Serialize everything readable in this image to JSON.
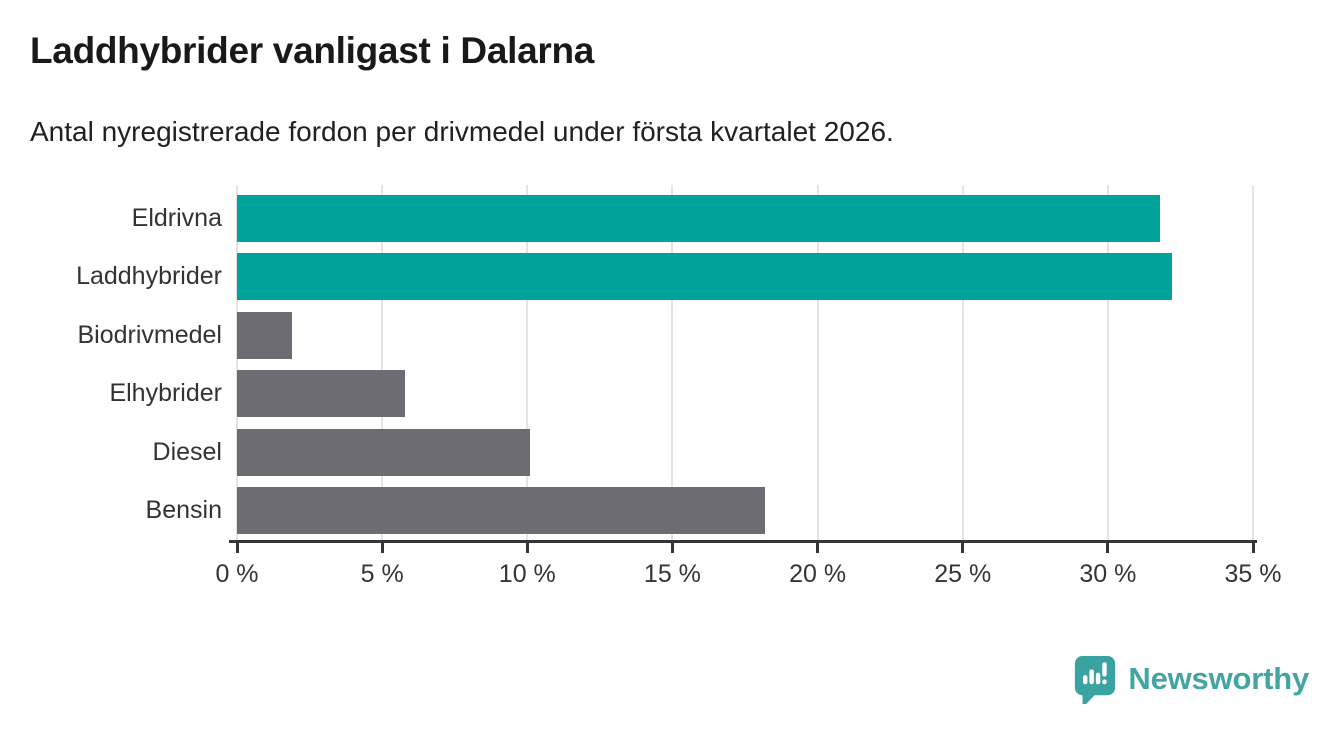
{
  "header": {
    "title": "Laddhybrider vanligast i Dalarna",
    "subtitle": "Antal nyregistrerade fordon per drivmedel under första kvartalet 2026."
  },
  "chart_data": {
    "type": "bar",
    "orientation": "horizontal",
    "title": "Laddhybrider vanligast i Dalarna",
    "subtitle": "Antal nyregistrerade fordon per drivmedel under första kvartalet 2026.",
    "categories": [
      "Eldrivna",
      "Laddhybrider",
      "Biodrivmedel",
      "Elhybrider",
      "Diesel",
      "Bensin"
    ],
    "values": [
      31.8,
      32.2,
      1.9,
      5.8,
      10.1,
      18.2
    ],
    "unit": "%",
    "xlabel": "",
    "ylabel": "",
    "xlim": [
      0,
      35
    ],
    "x_ticks": [
      0,
      5,
      10,
      15,
      20,
      25,
      30,
      35
    ],
    "x_tick_labels": [
      "0 %",
      "5 %",
      "10 %",
      "15 %",
      "20 %",
      "25 %",
      "30 %",
      "35 %"
    ],
    "grid": true,
    "legend": "none",
    "bar_colors": [
      "#00a299",
      "#00a299",
      "#6d6c73",
      "#6d6c73",
      "#6d6c73",
      "#6d6c73"
    ],
    "colors": {
      "highlight": "#00a299",
      "default": "#6d6c73",
      "gridline": "#e4e4e4",
      "axis": "#363339"
    }
  },
  "footer": {
    "logo_text": "Newsworthy",
    "logo_text_color": "#43a5a2",
    "logo_icon_color": "#38a3a0",
    "logo_icon": "newsworthy-speech-bubble-chart-icon"
  }
}
